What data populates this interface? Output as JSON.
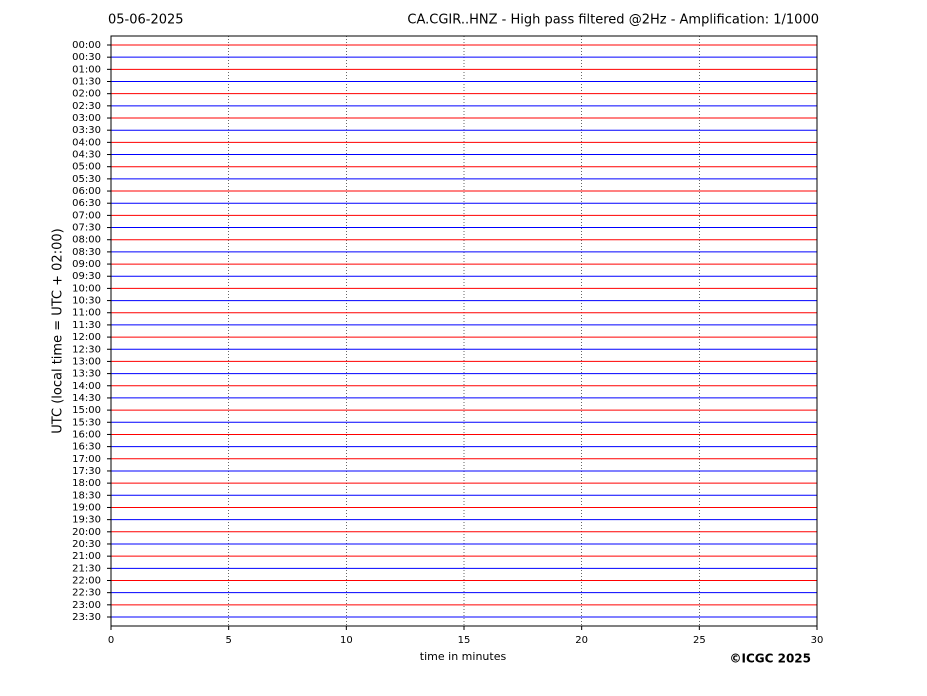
{
  "chart_data": {
    "type": "helicorder",
    "title": "CA.CGIR..HNZ - High pass filtered @2Hz - Amplification: 1/1000",
    "date": "05-06-2025",
    "xlabel": "time in minutes",
    "ylabel": "UTC (local time = UTC + 02:00)",
    "credit": "©ICGC 2025",
    "categories": [
      "00:00",
      "00:30",
      "01:00",
      "01:30",
      "02:00",
      "02:30",
      "03:00",
      "03:30",
      "04:00",
      "04:30",
      "05:00",
      "05:30",
      "06:00",
      "06:30",
      "07:00",
      "07:30",
      "08:00",
      "08:30",
      "09:00",
      "09:30",
      "10:00",
      "10:30",
      "11:00",
      "11:30",
      "12:00",
      "12:30",
      "13:00",
      "13:30",
      "14:00",
      "14:30",
      "15:00",
      "15:30",
      "16:00",
      "16:30",
      "17:00",
      "17:30",
      "18:00",
      "18:30",
      "19:00",
      "19:30",
      "20:00",
      "20:30",
      "21:00",
      "21:30",
      "22:00",
      "22:30",
      "23:00",
      "23:30"
    ],
    "colors": [
      "#ff0000",
      "#0000ff"
    ],
    "xlim": [
      0,
      30
    ],
    "xticks": [
      0,
      5,
      10,
      15,
      20,
      25,
      30
    ],
    "grid": true
  }
}
